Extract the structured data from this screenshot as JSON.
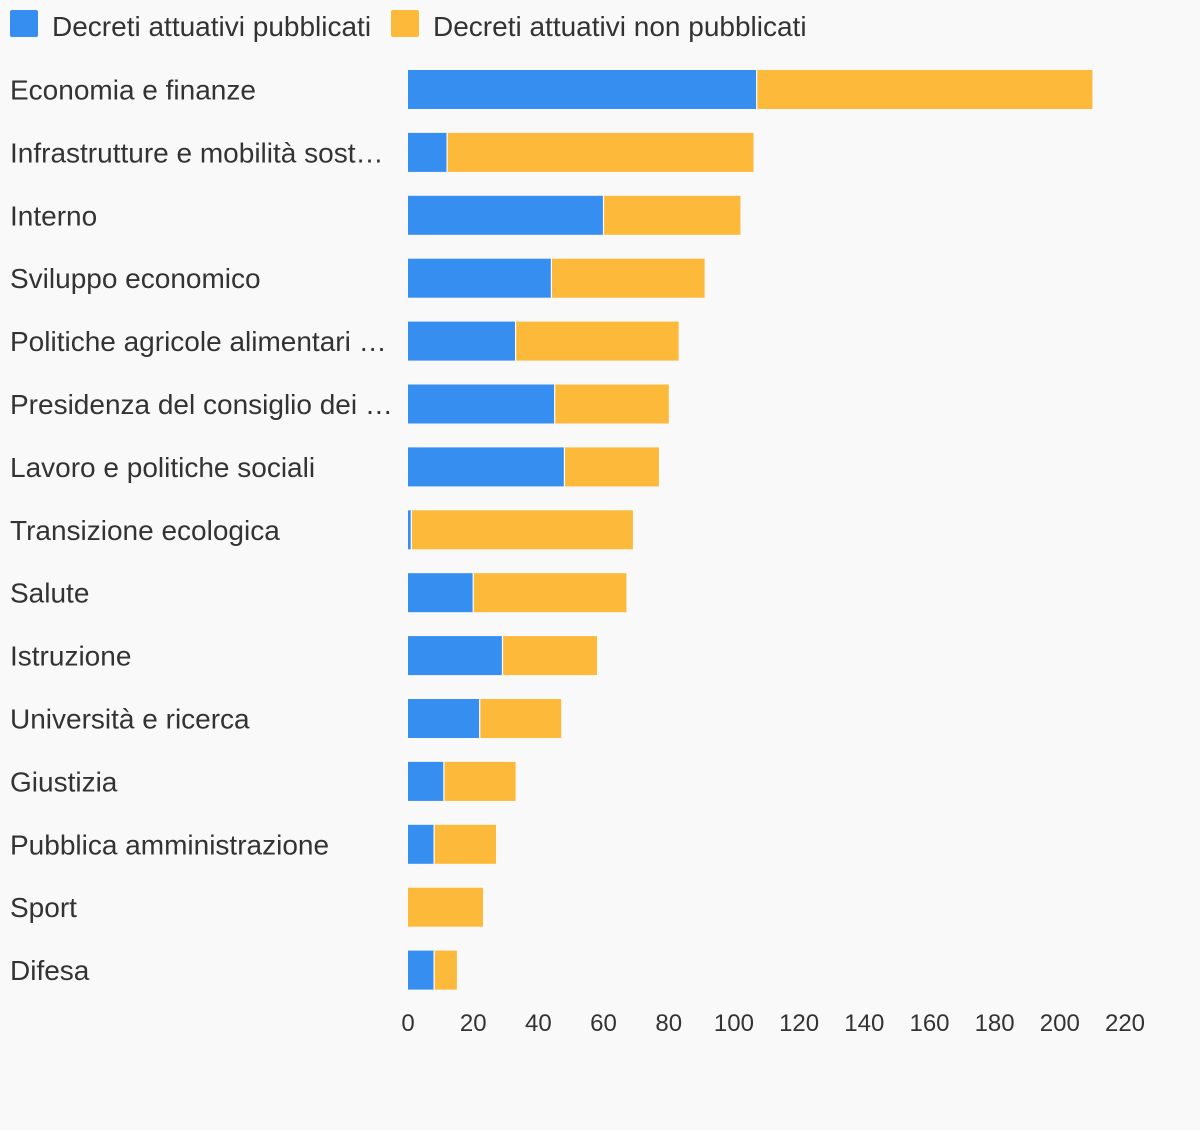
{
  "chart_data": {
    "type": "bar",
    "orientation": "horizontal",
    "stacked": true,
    "categories": [
      "Economia e finanze",
      "Infrastrutture e mobilità sost…",
      "Interno",
      "Sviluppo economico",
      "Politiche agricole alimentari …",
      "Presidenza del consiglio dei …",
      "Lavoro e politiche sociali",
      "Transizione ecologica",
      "Salute",
      "Istruzione",
      "Università e ricerca",
      "Giustizia",
      "Pubblica amministrazione",
      "Sport",
      "Difesa"
    ],
    "series": [
      {
        "name": "Decreti attuativi pubblicati",
        "color": "#358ef0",
        "values": [
          107,
          12,
          60,
          44,
          33,
          45,
          48,
          1,
          20,
          29,
          22,
          11,
          8,
          0,
          8
        ]
      },
      {
        "name": "Decreti attuativi non pubblicati",
        "color": "#fdb93a",
        "values": [
          103,
          94,
          42,
          47,
          50,
          35,
          29,
          68,
          47,
          29,
          25,
          22,
          19,
          23,
          7
        ]
      }
    ],
    "xticks": [
      "0",
      "20",
      "40",
      "60",
      "80",
      "100",
      "120",
      "140",
      "160",
      "180",
      "200",
      "220"
    ],
    "xlim": [
      0,
      220
    ],
    "legend_position": "top-left",
    "grid": false,
    "title": "",
    "xlabel": "",
    "ylabel": ""
  }
}
